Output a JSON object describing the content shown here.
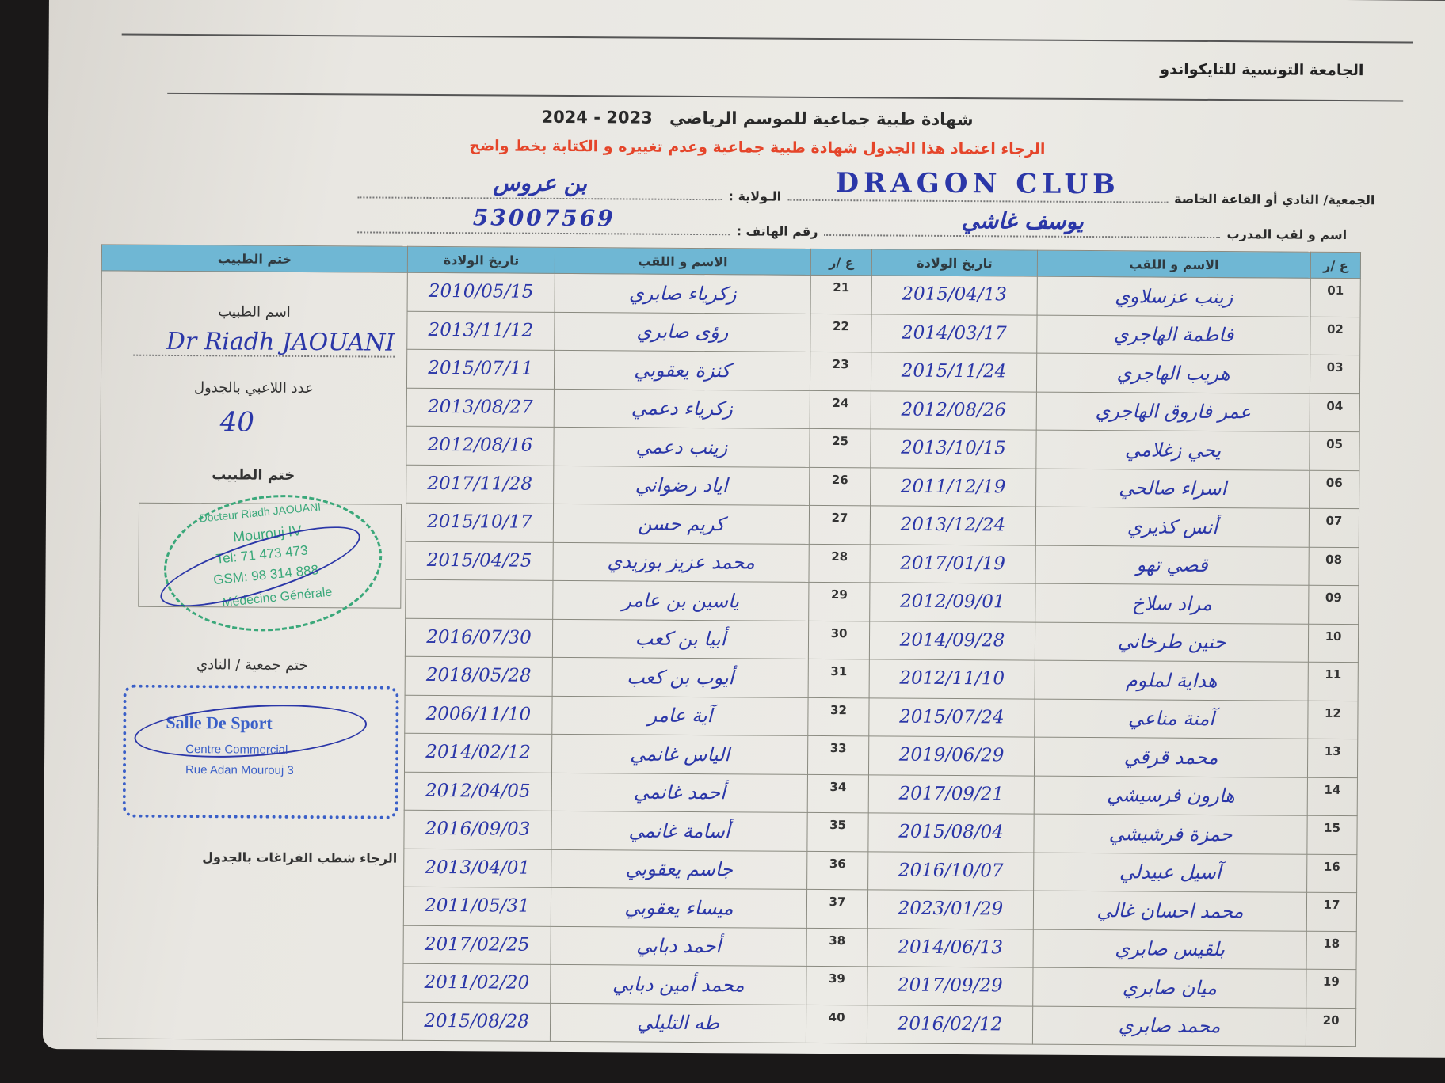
{
  "header": {
    "organization": "الجامعة التونسية للتايكواندو",
    "title": "شهادة طبية جماعية للموسم الرياضي",
    "season": "2023 - 2024",
    "instruction": "الرجاء اعتماد هذا الجدول شهادة طبية جماعية وعدم تغييره و الكتابة بخط واضح"
  },
  "fields": {
    "club_label": "الجمعية/ النادي أو القاعة الخاصة",
    "club_value": "DRAGON CLUB",
    "state_label": "الـولاية :",
    "state_value": "بن عروس",
    "coach_label": "اسم و لقب المدرب",
    "coach_value": "يوسف غاشي",
    "phone_label": "رقم الهاتف :",
    "phone_value": "53007569"
  },
  "table": {
    "headers": {
      "number": "ع /ر",
      "name": "الاسم و اللقب",
      "birth_date": "تاريخ الولادة",
      "doctor_stamp": "ختم الطبيب"
    },
    "rows": [
      {
        "n": "01",
        "name": "زينب عزسلاوي",
        "date": "2015/04/13",
        "n2": "21",
        "name2": "زكرياء صابري",
        "date2": "2010/05/15"
      },
      {
        "n": "02",
        "name": "فاطمة الهاجري",
        "date": "2014/03/17",
        "n2": "22",
        "name2": "رؤى صابري",
        "date2": "2013/11/12"
      },
      {
        "n": "03",
        "name": "هريب الهاجري",
        "date": "2015/11/24",
        "n2": "23",
        "name2": "كنزة يعقوبي",
        "date2": "2015/07/11"
      },
      {
        "n": "04",
        "name": "عمر فاروق الهاجري",
        "date": "2012/08/26",
        "n2": "24",
        "name2": "زكرياء دعمي",
        "date2": "2013/08/27"
      },
      {
        "n": "05",
        "name": "يحي زغلامي",
        "date": "2013/10/15",
        "n2": "25",
        "name2": "زينب دعمي",
        "date2": "2012/08/16"
      },
      {
        "n": "06",
        "name": "اسراء صالحي",
        "date": "2011/12/19",
        "n2": "26",
        "name2": "اياد رضواني",
        "date2": "2017/11/28"
      },
      {
        "n": "07",
        "name": "أنس كذيري",
        "date": "2013/12/24",
        "n2": "27",
        "name2": "كريم حسن",
        "date2": "2015/10/17"
      },
      {
        "n": "08",
        "name": "قصي تهو",
        "date": "2017/01/19",
        "n2": "28",
        "name2": "محمد عزيز بوزيدي",
        "date2": "2015/04/25"
      },
      {
        "n": "09",
        "name": "مراد سلاخ",
        "date": "2012/09/01",
        "n2": "29",
        "name2": "ياسين بن عامر",
        "date2": ""
      },
      {
        "n": "10",
        "name": "حنين طرخاني",
        "date": "2014/09/28",
        "n2": "30",
        "name2": "أبيا بن كعب",
        "date2": "2016/07/30"
      },
      {
        "n": "11",
        "name": "هداية لملوم",
        "date": "2012/11/10",
        "n2": "31",
        "name2": "أيوب بن كعب",
        "date2": "2018/05/28"
      },
      {
        "n": "12",
        "name": "آمنة مناعي",
        "date": "2015/07/24",
        "n2": "32",
        "name2": "آية عامر",
        "date2": "2006/11/10"
      },
      {
        "n": "13",
        "name": "محمد قرقي",
        "date": "2019/06/29",
        "n2": "33",
        "name2": "الياس غانمي",
        "date2": "2014/02/12"
      },
      {
        "n": "14",
        "name": "هارون فرسيشي",
        "date": "2017/09/21",
        "n2": "34",
        "name2": "أحمد غانمي",
        "date2": "2012/04/05"
      },
      {
        "n": "15",
        "name": "حمزة فرشيشي",
        "date": "2015/08/04",
        "n2": "35",
        "name2": "أسامة غانمي",
        "date2": "2016/09/03"
      },
      {
        "n": "16",
        "name": "آسيل عبيدلي",
        "date": "2016/10/07",
        "n2": "36",
        "name2": "جاسم يعقوبي",
        "date2": "2013/04/01"
      },
      {
        "n": "17",
        "name": "محمد احسان غالي",
        "date": "2023/01/29",
        "n2": "37",
        "name2": "ميساء يعقوبي",
        "date2": "2011/05/31"
      },
      {
        "n": "18",
        "name": "بلقيس صابري",
        "date": "2014/06/13",
        "n2": "38",
        "name2": "أحمد دبابي",
        "date2": "2017/02/25"
      },
      {
        "n": "19",
        "name": "ميان صابري",
        "date": "2017/09/29",
        "n2": "39",
        "name2": "محمد أمين دبابي",
        "date2": "2011/02/20"
      },
      {
        "n": "20",
        "name": "محمد صابري",
        "date": "2016/02/12",
        "n2": "40",
        "name2": "طه التليلي",
        "date2": "2015/08/28"
      }
    ]
  },
  "side": {
    "doctor_name_label": "اسم الطبيب",
    "doctor_name": "Dr Riadh JAOUANI",
    "player_count_label": "عدد اللاعبي بالجدول",
    "player_count": "40",
    "doctor_stamp_label": "ختم الطبيب",
    "doctor_stamp": {
      "line1": "Docteur Riadh JAOUANI",
      "line2": "Mourouj IV",
      "line3": "Tel: 71 473 473",
      "line4": "GSM: 98 314 888",
      "line5": "Médecine Générale",
      "color": "#3aa87a"
    },
    "club_stamp_label": "ختم جمعية / النادي",
    "club_stamp": {
      "line1": "Salle De Sport",
      "line2": "Centre Commercial",
      "line3": "Rue Adan Mourouj 3",
      "color": "#3a5fc8"
    },
    "note": "الرجاء شطب الفراغات بالجدول"
  },
  "colors": {
    "header_bg": "#6fb7d4",
    "ink": "#2b37a8",
    "instruction": "#e5452a"
  }
}
